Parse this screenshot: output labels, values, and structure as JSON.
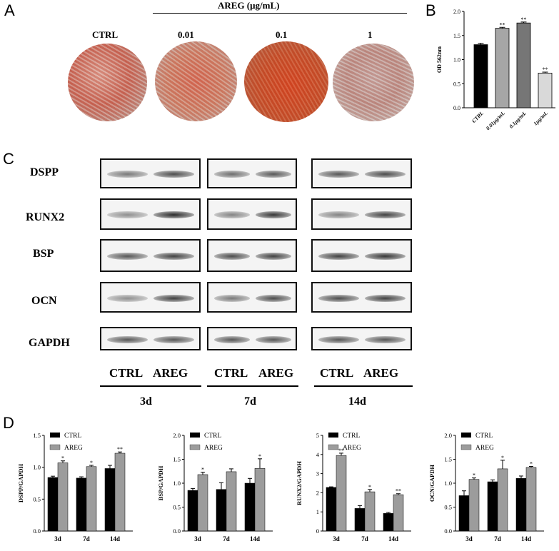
{
  "panels": {
    "A": "A",
    "B": "B",
    "C": "C",
    "D": "D"
  },
  "panelA": {
    "group_title": "AREG (μg/mL)",
    "dish_labels": [
      "CTRL",
      "0.01",
      "0.1",
      "1"
    ]
  },
  "panelB": {
    "chart_data": {
      "type": "bar",
      "categories": [
        "CTRL",
        "0.01μg/mL",
        "0.1μg/mL",
        "1μg/mL"
      ],
      "values": [
        1.31,
        1.65,
        1.76,
        0.72
      ],
      "errors": [
        0.03,
        0.02,
        0.02,
        0.02
      ],
      "significance": [
        "",
        "**",
        "**",
        "**"
      ],
      "colors": [
        "#000000",
        "#a6a6a6",
        "#767676",
        "#d9d9d9"
      ],
      "ylabel": "OD 562nm",
      "ylim": [
        0,
        2.0
      ],
      "yticks": [
        "0.0",
        "0.5",
        "1.0",
        "1.5",
        "2.0"
      ]
    }
  },
  "panelC": {
    "rows": [
      "DSPP",
      "RUNX2",
      "BSP",
      "OCN",
      "GAPDH"
    ],
    "lanes": [
      "CTRL",
      "AREG"
    ],
    "days": [
      "3d",
      "7d",
      "14d"
    ]
  },
  "panelD": {
    "legend": [
      "CTRL",
      "AREG"
    ],
    "colors": {
      "ctrl": "#000000",
      "areg": "#9c9c9c"
    },
    "chart_data": [
      {
        "type": "bar",
        "ylabel": "DSPP/GAPDH",
        "categories": [
          "3d",
          "7d",
          "14d"
        ],
        "ylim": [
          0,
          1.5
        ],
        "yticks": [
          "0.0",
          "0.5",
          "1.0",
          "1.5"
        ],
        "series": [
          {
            "name": "CTRL",
            "values": [
              0.84,
              0.83,
              0.98
            ],
            "errors": [
              0.02,
              0.02,
              0.05
            ]
          },
          {
            "name": "AREG",
            "values": [
              1.07,
              1.01,
              1.22
            ],
            "errors": [
              0.03,
              0.02,
              0.02
            ]
          }
        ],
        "significance": [
          "*",
          "*",
          "**"
        ]
      },
      {
        "type": "bar",
        "ylabel": "BSP/GAPDH",
        "categories": [
          "3d",
          "7d",
          "14d"
        ],
        "ylim": [
          0,
          2.0
        ],
        "yticks": [
          "0.0",
          "0.5",
          "1.0",
          "1.5",
          "2.0"
        ],
        "series": [
          {
            "name": "CTRL",
            "values": [
              0.85,
              0.87,
              1.0
            ],
            "errors": [
              0.04,
              0.14,
              0.1
            ]
          },
          {
            "name": "AREG",
            "values": [
              1.18,
              1.24,
              1.31
            ],
            "errors": [
              0.05,
              0.06,
              0.2
            ]
          }
        ],
        "significance": [
          "*",
          "",
          "*"
        ]
      },
      {
        "type": "bar",
        "ylabel": "RUNX2/GAPDH",
        "categories": [
          "3d",
          "7d",
          "14d"
        ],
        "ylim": [
          0,
          5
        ],
        "yticks": [
          "0",
          "1",
          "2",
          "3",
          "4",
          "5"
        ],
        "series": [
          {
            "name": "CTRL",
            "values": [
              2.28,
              1.18,
              0.92
            ],
            "errors": [
              0.03,
              0.15,
              0.05
            ]
          },
          {
            "name": "AREG",
            "values": [
              3.95,
              2.05,
              1.9
            ],
            "errors": [
              0.12,
              0.12,
              0.05
            ]
          }
        ],
        "significance": [
          "**",
          "*",
          "**"
        ]
      },
      {
        "type": "bar",
        "ylabel": "OCN/GAPDH",
        "categories": [
          "3d",
          "7d",
          "14d"
        ],
        "ylim": [
          0,
          2.0
        ],
        "yticks": [
          "0.0",
          "0.5",
          "1.0",
          "1.5",
          "2.0"
        ],
        "series": [
          {
            "name": "CTRL",
            "values": [
              0.74,
              1.03,
              1.1
            ],
            "errors": [
              0.1,
              0.04,
              0.05
            ]
          },
          {
            "name": "AREG",
            "values": [
              1.08,
              1.3,
              1.33
            ],
            "errors": [
              0.03,
              0.18,
              0.02
            ]
          }
        ],
        "significance": [
          "*",
          "*",
          "*"
        ]
      }
    ]
  }
}
